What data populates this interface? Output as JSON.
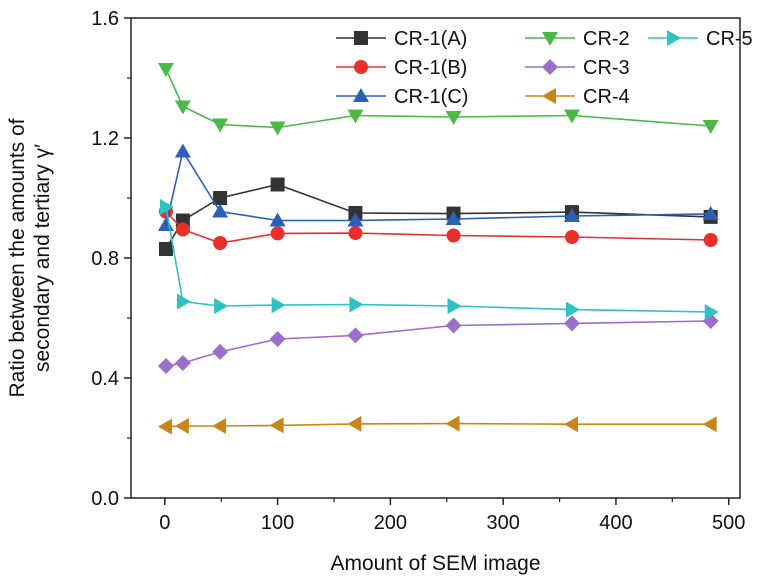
{
  "chart_data": {
    "type": "line",
    "xlabel": "Amount of SEM image",
    "ylabel_lines": [
      "Ratio between the amounts of",
      "secondary and tertiary γ′"
    ],
    "xlim": [
      -30,
      510
    ],
    "ylim": [
      0.0,
      1.6
    ],
    "x_ticks": [
      0,
      100,
      200,
      300,
      400,
      500
    ],
    "x_tick_labels": [
      "0",
      "100",
      "200",
      "300",
      "400",
      "500"
    ],
    "y_ticks": [
      0.0,
      0.4,
      0.8,
      1.2,
      1.6
    ],
    "y_tick_labels": [
      "0.0",
      "0.4",
      "0.8",
      "1.2",
      "1.6"
    ],
    "grid": false,
    "legend_position": "top-right",
    "series": [
      {
        "name": "CR-1(A)",
        "color": "#333333",
        "marker": "square",
        "points": [
          [
            1,
            0.83
          ],
          [
            16,
            0.925
          ],
          [
            49,
            1.0
          ],
          [
            100,
            1.045
          ],
          [
            169,
            0.95
          ],
          [
            256,
            0.948
          ],
          [
            361,
            0.953
          ],
          [
            484,
            0.937
          ]
        ]
      },
      {
        "name": "CR-1(B)",
        "color": "#e8302b",
        "marker": "circle",
        "points": [
          [
            1,
            0.955
          ],
          [
            16,
            0.895
          ],
          [
            49,
            0.85
          ],
          [
            100,
            0.882
          ],
          [
            169,
            0.883
          ],
          [
            256,
            0.875
          ],
          [
            361,
            0.87
          ],
          [
            484,
            0.86
          ]
        ]
      },
      {
        "name": "CR-1(C)",
        "color": "#2e5fb8",
        "marker": "triangle-up",
        "points": [
          [
            1,
            0.91
          ],
          [
            16,
            1.155
          ],
          [
            49,
            0.955
          ],
          [
            100,
            0.925
          ],
          [
            169,
            0.925
          ],
          [
            256,
            0.93
          ],
          [
            361,
            0.94
          ],
          [
            484,
            0.947
          ]
        ]
      },
      {
        "name": "CR-2",
        "color": "#4cb848",
        "marker": "triangle-down",
        "points": [
          [
            1,
            1.43
          ],
          [
            16,
            1.305
          ],
          [
            49,
            1.245
          ],
          [
            100,
            1.235
          ],
          [
            169,
            1.275
          ],
          [
            256,
            1.27
          ],
          [
            361,
            1.275
          ],
          [
            484,
            1.24
          ]
        ]
      },
      {
        "name": "CR-3",
        "color": "#9b6fc9",
        "marker": "diamond",
        "points": [
          [
            1,
            0.44
          ],
          [
            16,
            0.45
          ],
          [
            49,
            0.487
          ],
          [
            100,
            0.53
          ],
          [
            169,
            0.542
          ],
          [
            256,
            0.575
          ],
          [
            361,
            0.582
          ],
          [
            484,
            0.59
          ]
        ]
      },
      {
        "name": "CR-4",
        "color": "#c8861a",
        "marker": "triangle-left",
        "points": [
          [
            1,
            0.238
          ],
          [
            16,
            0.24
          ],
          [
            49,
            0.24
          ],
          [
            100,
            0.242
          ],
          [
            169,
            0.247
          ],
          [
            256,
            0.248
          ],
          [
            361,
            0.246
          ],
          [
            484,
            0.246
          ]
        ]
      },
      {
        "name": "CR-5",
        "color": "#2ec3c0",
        "marker": "triangle-right",
        "points": [
          [
            1,
            0.97
          ],
          [
            16,
            0.655
          ],
          [
            49,
            0.64
          ],
          [
            100,
            0.643
          ],
          [
            169,
            0.645
          ],
          [
            256,
            0.64
          ],
          [
            361,
            0.628
          ],
          [
            484,
            0.62
          ]
        ]
      }
    ]
  }
}
